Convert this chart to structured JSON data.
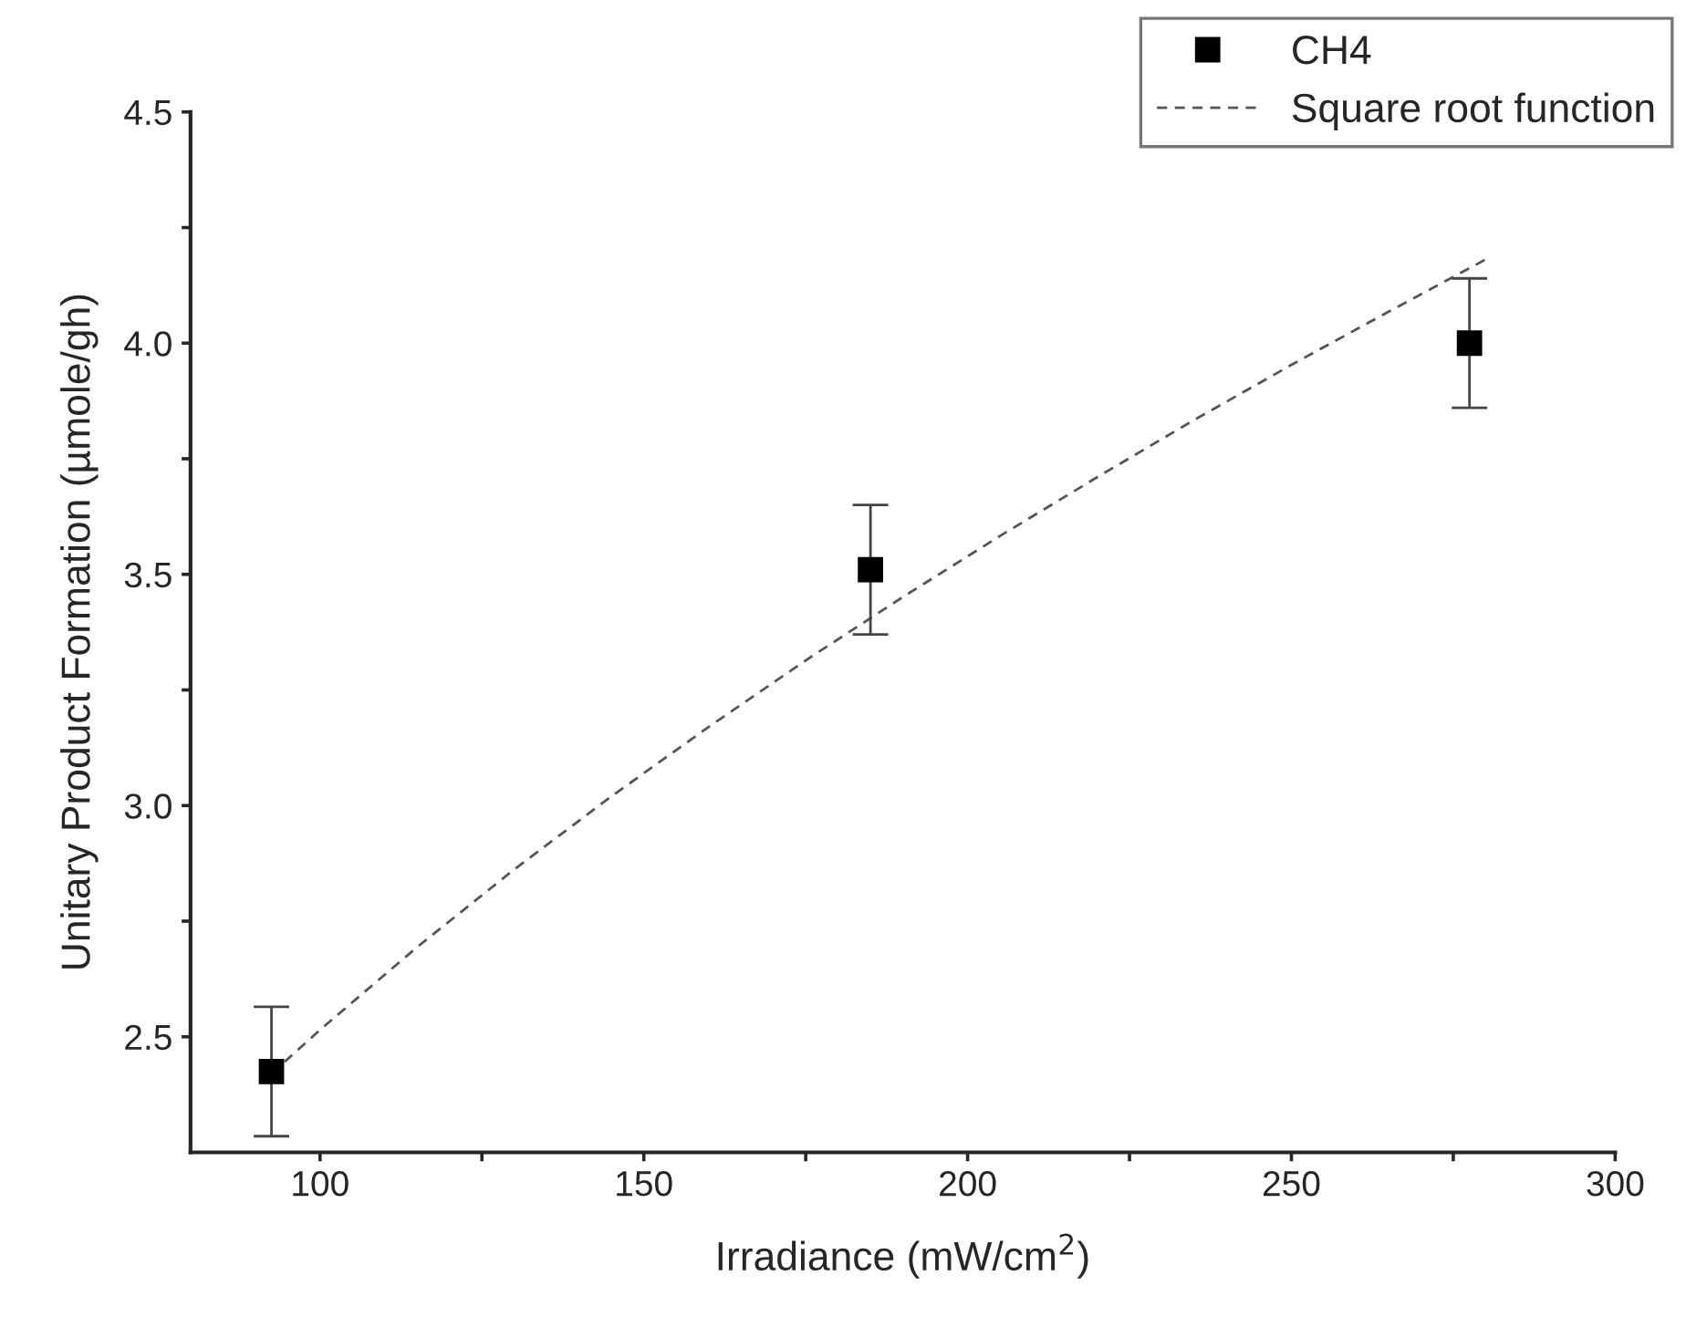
{
  "chart_data": {
    "type": "scatter",
    "xlabel": "Irradiance (mW/cm$^{2}$)",
    "ylabel": "Unitary Product Formation (µmole/gh)",
    "xlim": [
      80,
      300
    ],
    "xticks": [
      100,
      {
        "value": 125,
        "label": null
      },
      150,
      {
        "value": 175,
        "label": null
      },
      200,
      {
        "value": 225,
        "label": null
      },
      250,
      {
        "value": 275,
        "label": null
      },
      300
    ],
    "ylim": [
      2.25,
      4.5
    ],
    "yticks": [
      {
        "value": 2.5,
        "label": "2.5"
      },
      {
        "value": 2.75,
        "label": null
      },
      {
        "value": 3.0,
        "label": "3.0"
      },
      {
        "value": 3.25,
        "label": null
      },
      {
        "value": 3.5,
        "label": "3.5"
      },
      {
        "value": 3.75,
        "label": null
      },
      {
        "value": 4.0,
        "label": "4.0"
      },
      {
        "value": 4.25,
        "label": null
      },
      {
        "value": 4.5,
        "label": "4.5"
      }
    ],
    "grid": false,
    "legend": "top right",
    "series": [
      {
        "name": "CH4",
        "marker": "square",
        "color": "#000000",
        "x": [
          92.5,
          185,
          277.5
        ],
        "values": [
          2.425,
          3.51,
          4.0
        ],
        "errors": [
          0.14,
          0.14,
          0.14
        ]
      },
      {
        "name": "Square root function",
        "type": "line",
        "line_style": "dashed",
        "color": "#555555",
        "x": [
          92.5,
          100,
          115,
          130,
          145,
          160,
          175,
          190,
          205,
          220,
          235,
          250,
          265,
          280
        ],
        "values": [
          2.42,
          2.515,
          2.694,
          2.862,
          3.02,
          3.17,
          3.314,
          3.451,
          3.583,
          3.71,
          3.834,
          3.953,
          4.068,
          4.181
        ]
      }
    ]
  }
}
